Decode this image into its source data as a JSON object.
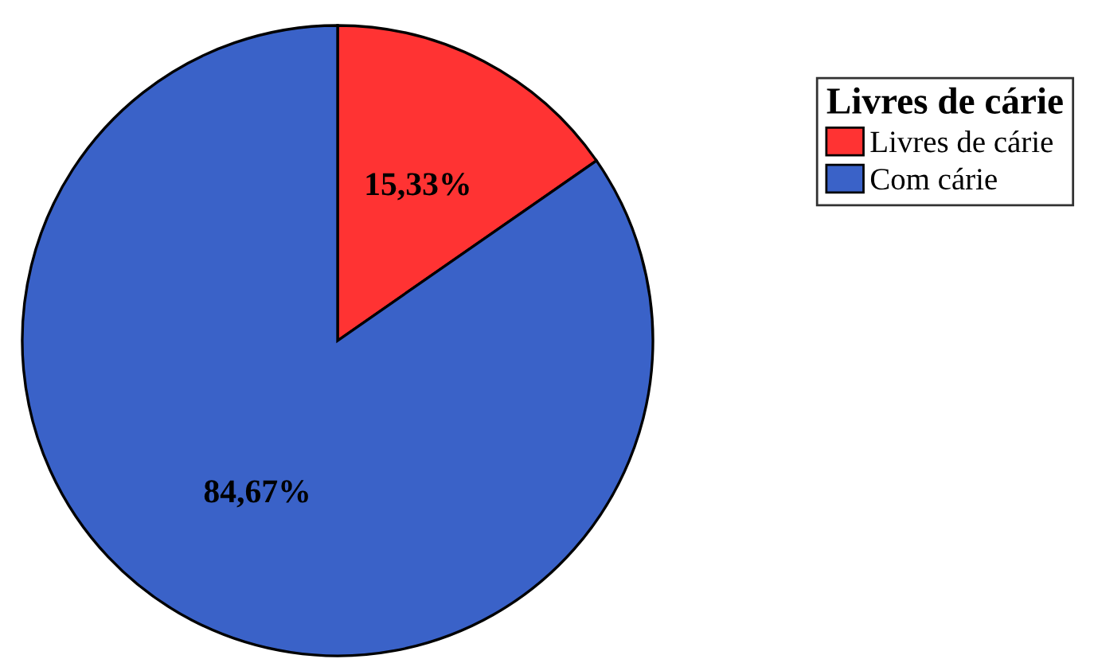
{
  "chart_data": {
    "type": "pie",
    "legend_title": "Livres de cárie",
    "categories": [
      "Livres de cárie",
      "Com cárie"
    ],
    "values": [
      15.33,
      84.67
    ],
    "value_labels": [
      "15,33%",
      "84,67%"
    ],
    "colors": [
      "#ff3333",
      "#3a62c8"
    ],
    "legend": "top right"
  }
}
